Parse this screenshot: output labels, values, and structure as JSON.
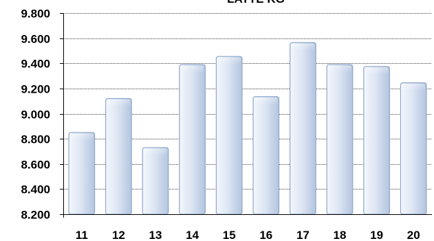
{
  "chart_data": {
    "type": "bar",
    "title": "LATTE KG",
    "categories": [
      "11",
      "12",
      "13",
      "14",
      "15",
      "16",
      "17",
      "18",
      "19",
      "20"
    ],
    "values": [
      8850,
      9120,
      8730,
      9390,
      9455,
      9135,
      9565,
      9390,
      9375,
      9245
    ],
    "ylim": [
      8200,
      9800
    ],
    "yticks": [
      8200,
      8400,
      8600,
      8800,
      9000,
      9200,
      9400,
      9600,
      9800
    ],
    "ytick_labels": [
      "8.200",
      "8.400",
      "8.600",
      "8.800",
      "9.000",
      "9.200",
      "9.400",
      "9.600",
      "9.800"
    ],
    "grid": true,
    "legend": "none",
    "colors": {
      "bar_top": "#f4f7fc",
      "bar_mid": "#dde6f3",
      "bar_bottom": "#b3c5e0",
      "bar_stroke": "#8ea6cb",
      "grid": "#000000",
      "axis": "#000000"
    }
  }
}
